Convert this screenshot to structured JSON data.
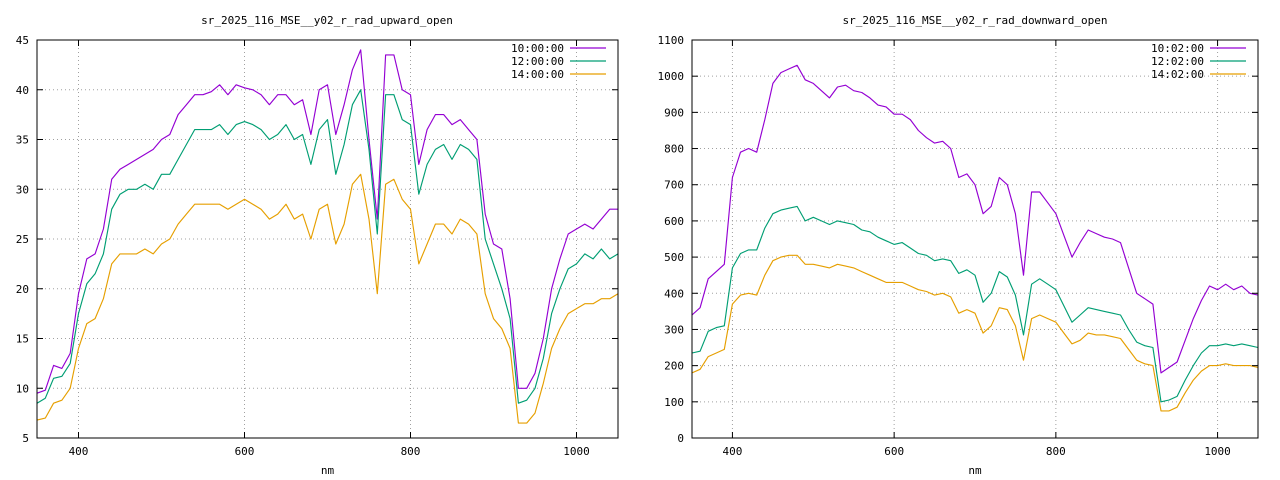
{
  "chart_data": [
    {
      "type": "line",
      "title": "sr_2025_116_MSE__y02_r_rad_upward_open",
      "xlabel": "nm",
      "ylabel": "",
      "xlim": [
        350,
        1050
      ],
      "ylim": [
        5,
        45
      ],
      "xticks": [
        400,
        600,
        800,
        1000
      ],
      "yticks": [
        5,
        10,
        15,
        20,
        25,
        30,
        35,
        40,
        45
      ],
      "grid": true,
      "legend": "top-right",
      "x": [
        350,
        360,
        370,
        380,
        390,
        400,
        410,
        420,
        430,
        440,
        450,
        460,
        470,
        480,
        490,
        500,
        510,
        520,
        530,
        540,
        550,
        560,
        570,
        580,
        590,
        600,
        610,
        620,
        630,
        640,
        650,
        660,
        670,
        680,
        690,
        700,
        710,
        720,
        730,
        740,
        750,
        760,
        770,
        780,
        790,
        800,
        810,
        820,
        830,
        840,
        850,
        860,
        870,
        880,
        890,
        900,
        910,
        920,
        930,
        940,
        950,
        960,
        970,
        980,
        990,
        1000,
        1010,
        1020,
        1030,
        1040,
        1050
      ],
      "series": [
        {
          "name": "10:00:00",
          "color": "#9400d3",
          "values": [
            9.5,
            9.8,
            12.3,
            12.0,
            13.5,
            19.5,
            23.0,
            23.5,
            26.0,
            31.0,
            32.0,
            32.5,
            33.0,
            33.5,
            34.0,
            35.0,
            35.5,
            37.5,
            38.5,
            39.5,
            39.5,
            39.8,
            40.5,
            39.5,
            40.5,
            40.2,
            40.0,
            39.5,
            38.5,
            39.5,
            39.5,
            38.5,
            39.0,
            35.5,
            40.0,
            40.5,
            35.5,
            38.5,
            42.0,
            44.0,
            35.0,
            27.0,
            43.5,
            43.5,
            40.0,
            39.5,
            32.5,
            36.0,
            37.5,
            37.5,
            36.5,
            37.0,
            36.0,
            35.0,
            27.5,
            24.5,
            24.0,
            19.0,
            10.0,
            10.0,
            11.5,
            15.0,
            20.0,
            23.0,
            25.5,
            26.0,
            26.5,
            26.0,
            27.0,
            28.0,
            28.0
          ]
        },
        {
          "name": "12:00:00",
          "color": "#009e73",
          "values": [
            8.5,
            9.0,
            11.0,
            11.2,
            12.5,
            17.5,
            20.5,
            21.5,
            23.5,
            28.0,
            29.5,
            30.0,
            30.0,
            30.5,
            30.0,
            31.5,
            31.5,
            33.0,
            34.5,
            36.0,
            36.0,
            36.0,
            36.5,
            35.5,
            36.5,
            36.8,
            36.5,
            36.0,
            35.0,
            35.5,
            36.5,
            35.0,
            35.5,
            32.5,
            36.0,
            37.0,
            31.5,
            34.5,
            38.5,
            40.0,
            34.0,
            25.5,
            39.5,
            39.5,
            37.0,
            36.5,
            29.5,
            32.5,
            34.0,
            34.5,
            33.0,
            34.5,
            34.0,
            33.0,
            25.0,
            22.5,
            20.0,
            17.0,
            8.5,
            8.8,
            10.0,
            13.0,
            17.5,
            20.0,
            22.0,
            22.5,
            23.5,
            23.0,
            24.0,
            23.0,
            23.5
          ]
        },
        {
          "name": "14:00:00",
          "color": "#e69f00",
          "values": [
            6.8,
            7.0,
            8.5,
            8.8,
            10.0,
            14.0,
            16.5,
            17.0,
            19.0,
            22.5,
            23.5,
            23.5,
            23.5,
            24.0,
            23.5,
            24.5,
            25.0,
            26.5,
            27.5,
            28.5,
            28.5,
            28.5,
            28.5,
            28.0,
            28.5,
            29.0,
            28.5,
            28.0,
            27.0,
            27.5,
            28.5,
            27.0,
            27.5,
            25.0,
            28.0,
            28.5,
            24.5,
            26.5,
            30.5,
            31.5,
            27.0,
            19.5,
            30.5,
            31.0,
            29.0,
            28.0,
            22.5,
            24.5,
            26.5,
            26.5,
            25.5,
            27.0,
            26.5,
            25.5,
            19.5,
            17.0,
            16.0,
            14.0,
            6.5,
            6.5,
            7.5,
            10.5,
            14.0,
            16.0,
            17.5,
            18.0,
            18.5,
            18.5,
            19.0,
            19.0,
            19.5
          ]
        }
      ]
    },
    {
      "type": "line",
      "title": "sr_2025_116_MSE__y02_r_rad_downward_open",
      "xlabel": "nm",
      "ylabel": "",
      "xlim": [
        350,
        1050
      ],
      "ylim": [
        0,
        1100
      ],
      "xticks": [
        400,
        600,
        800,
        1000
      ],
      "yticks": [
        0,
        100,
        200,
        300,
        400,
        500,
        600,
        700,
        800,
        900,
        1000,
        1100
      ],
      "grid": true,
      "legend": "top-right",
      "x": [
        350,
        360,
        370,
        380,
        390,
        400,
        410,
        420,
        430,
        440,
        450,
        460,
        470,
        480,
        490,
        500,
        510,
        520,
        530,
        540,
        550,
        560,
        570,
        580,
        590,
        600,
        610,
        620,
        630,
        640,
        650,
        660,
        670,
        680,
        690,
        700,
        710,
        720,
        730,
        740,
        750,
        760,
        770,
        780,
        790,
        800,
        810,
        820,
        830,
        840,
        850,
        860,
        870,
        880,
        890,
        900,
        910,
        920,
        930,
        940,
        950,
        960,
        970,
        980,
        990,
        1000,
        1010,
        1020,
        1030,
        1040,
        1050
      ],
      "series": [
        {
          "name": "10:02:00",
          "color": "#9400d3",
          "values": [
            340,
            360,
            440,
            460,
            480,
            720,
            790,
            800,
            790,
            880,
            980,
            1010,
            1020,
            1030,
            990,
            980,
            960,
            940,
            970,
            975,
            960,
            955,
            940,
            920,
            915,
            895,
            895,
            880,
            850,
            830,
            815,
            820,
            800,
            720,
            730,
            700,
            620,
            640,
            720,
            700,
            620,
            450,
            680,
            680,
            650,
            620,
            560,
            500,
            540,
            575,
            565,
            555,
            550,
            540,
            470,
            400,
            385,
            370,
            180,
            195,
            210,
            270,
            330,
            380,
            420,
            410,
            425,
            410,
            420,
            400,
            395
          ]
        },
        {
          "name": "12:02:00",
          "color": "#009e73",
          "values": [
            235,
            240,
            295,
            305,
            310,
            470,
            510,
            520,
            520,
            580,
            620,
            630,
            635,
            640,
            600,
            610,
            600,
            590,
            600,
            595,
            590,
            575,
            570,
            555,
            545,
            535,
            540,
            525,
            510,
            505,
            490,
            495,
            490,
            455,
            465,
            450,
            375,
            400,
            460,
            445,
            395,
            285,
            425,
            440,
            425,
            410,
            365,
            320,
            340,
            360,
            355,
            350,
            345,
            340,
            300,
            265,
            255,
            250,
            100,
            105,
            115,
            160,
            200,
            235,
            255,
            255,
            260,
            255,
            260,
            255,
            250
          ]
        },
        {
          "name": "14:02:00",
          "color": "#e69f00",
          "values": [
            180,
            190,
            225,
            235,
            245,
            370,
            395,
            400,
            395,
            450,
            490,
            500,
            505,
            505,
            480,
            480,
            475,
            470,
            480,
            475,
            470,
            460,
            450,
            440,
            430,
            430,
            430,
            420,
            410,
            405,
            395,
            400,
            390,
            345,
            355,
            345,
            290,
            310,
            360,
            355,
            310,
            215,
            330,
            340,
            330,
            320,
            290,
            260,
            270,
            290,
            285,
            285,
            280,
            275,
            245,
            215,
            205,
            200,
            75,
            75,
            85,
            125,
            160,
            185,
            200,
            200,
            205,
            200,
            200,
            200,
            195
          ]
        }
      ]
    }
  ]
}
